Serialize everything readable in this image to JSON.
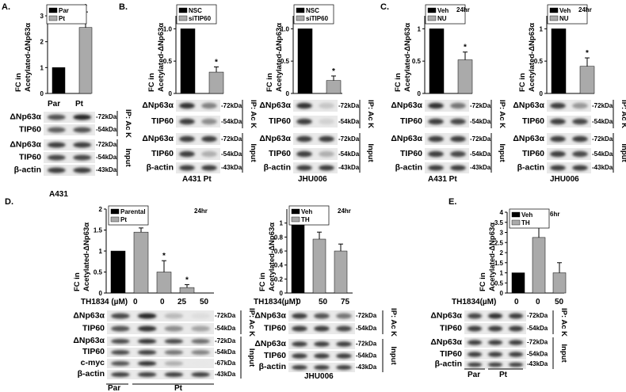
{
  "labels": {
    "A": "A.",
    "B": "B.",
    "C": "C.",
    "D": "D.",
    "E": "E.",
    "fc_in": "FC in",
    "acetylated": "Acetylated-ΔNp63α",
    "dnp63": "ΔNp63α",
    "tip60": "TIP60",
    "bactin": "β-actin",
    "cmyc": "c-myc",
    "kda72": "-72kDa",
    "kda54": "-54kDa",
    "kda43": "-43kDa",
    "kda67": "-67kDa",
    "ip": "IP: Ac K",
    "input": "Input",
    "star": "*"
  },
  "panel_a": {
    "cell_line": "A431",
    "lanes": [
      "Par",
      "Pt"
    ]
  },
  "panel_b": {
    "cell_lines": [
      "A431 Pt",
      "JHU006"
    ]
  },
  "panel_c": {
    "cell_lines": [
      "A431 Pt",
      "JHU006"
    ]
  },
  "panel_d": {
    "dose_label": "TH1834 (µM)",
    "doses_left": [
      "0",
      "0",
      "25",
      "50"
    ],
    "dose_label_right": "TH1834(µM)",
    "doses_right": [
      "0",
      "50",
      "75"
    ],
    "groups": [
      "Par",
      "Pt"
    ],
    "cell_line_right": "JHU006"
  },
  "panel_e": {
    "dose_label": "TH1834(µM)",
    "doses": [
      "0",
      "0",
      "50"
    ],
    "groups": [
      "Par",
      "Pt"
    ]
  },
  "chart_data": [
    {
      "panel": "A",
      "type": "bar",
      "categories": [
        "Par",
        "Pt"
      ],
      "series": [
        {
          "name": "Par",
          "values": [
            1.0,
            null
          ],
          "color": "#000000"
        },
        {
          "name": "Pt",
          "values": [
            null,
            2.55
          ],
          "color": "#aaaaaa"
        }
      ],
      "errors": [
        0,
        0.6
      ],
      "ylabel": "FC in Acetylated-ΔNp63α",
      "ylim": [
        0,
        3
      ],
      "yticks": [
        "0",
        "1",
        "2",
        "3"
      ],
      "legend": [
        "Par",
        "Pt"
      ],
      "significance": [
        false,
        true
      ]
    },
    {
      "panel": "B-A431 Pt",
      "type": "bar",
      "categories": [
        "NSC",
        "siTIP60"
      ],
      "values": [
        1.0,
        0.33
      ],
      "errors": [
        0,
        0.08
      ],
      "ylabel": "FC in Acetylated-ΔNp63α",
      "ylim": [
        0,
        1.2
      ],
      "yticks": [
        "0",
        "0.5",
        "1.0"
      ],
      "legend": [
        "NSC",
        "siTIP60"
      ],
      "significance": [
        false,
        true
      ]
    },
    {
      "panel": "B-JHU006",
      "type": "bar",
      "categories": [
        "NSC",
        "siTIP60"
      ],
      "values": [
        1.0,
        0.2
      ],
      "errors": [
        0,
        0.07
      ],
      "ylabel": "FC in Acetylated-ΔNp63α",
      "ylim": [
        0,
        1.2
      ],
      "yticks": [
        "0",
        "0.5",
        "1.0"
      ],
      "legend": [
        "NSC",
        "siTIP60"
      ],
      "significance": [
        false,
        true
      ]
    },
    {
      "panel": "C-A431 Pt",
      "type": "bar",
      "categories": [
        "Veh",
        "NU"
      ],
      "values": [
        1.0,
        0.52
      ],
      "errors": [
        0,
        0.12
      ],
      "ylabel": "FC in Acetylated-ΔNp63α",
      "ylim": [
        0,
        1.2
      ],
      "yticks": [
        "0",
        "0.5",
        "1"
      ],
      "legend": [
        "Veh",
        "NU"
      ],
      "annotation": "24hr",
      "significance": [
        false,
        true
      ]
    },
    {
      "panel": "C-JHU006",
      "type": "bar",
      "categories": [
        "Veh",
        "NU"
      ],
      "values": [
        1.0,
        0.42
      ],
      "errors": [
        0,
        0.13
      ],
      "ylabel": "FC in Acetylated-ΔNp63α",
      "ylim": [
        0,
        1.2
      ],
      "yticks": [
        "0",
        "0.5",
        "1"
      ],
      "legend": [
        "Veh",
        "NU"
      ],
      "annotation": "24hr",
      "significance": [
        false,
        true
      ]
    },
    {
      "panel": "D-left",
      "type": "bar",
      "categories": [
        "0",
        "0",
        "25",
        "50"
      ],
      "values": [
        1.0,
        1.45,
        0.5,
        0.13
      ],
      "errors": [
        0,
        0.1,
        0.27,
        0.07
      ],
      "colors": [
        "#000000",
        "#aaaaaa",
        "#aaaaaa",
        "#aaaaaa"
      ],
      "ylabel": "FC in Acetylated-ΔNp63α",
      "ylim": [
        0,
        2.0
      ],
      "yticks": [
        "0",
        "0.5",
        "1",
        "1.5",
        "2"
      ],
      "legend": [
        "Parental",
        "Pt"
      ],
      "annotation": "24hr",
      "significance": [
        false,
        false,
        true,
        true
      ]
    },
    {
      "panel": "D-right",
      "type": "bar",
      "categories": [
        "0",
        "50",
        "75"
      ],
      "values": [
        1.0,
        0.77,
        0.6
      ],
      "errors": [
        0,
        0.1,
        0.1
      ],
      "colors": [
        "#000000",
        "#aaaaaa",
        "#aaaaaa"
      ],
      "ylabel": "FC in Acetylated-ΔNp63α",
      "ylim": [
        0,
        1.2
      ],
      "yticks": [
        "0",
        "0.2",
        "0.4",
        "0.6",
        "0.8",
        "1"
      ],
      "legend": [
        "Veh",
        "TH"
      ],
      "annotation": "24hr"
    },
    {
      "panel": "E",
      "type": "bar",
      "categories": [
        "0",
        "0",
        "50"
      ],
      "values": [
        1.0,
        2.75,
        1.0
      ],
      "errors": [
        0,
        1.1,
        0.5
      ],
      "colors": [
        "#000000",
        "#aaaaaa",
        "#aaaaaa"
      ],
      "ylabel": "FC in Acetylated-ΔNp63α",
      "ylim": [
        0,
        4
      ],
      "yticks": [
        "0",
        "0.5",
        "1",
        "1.5",
        "2",
        "2.5",
        "3",
        "3.5",
        "4"
      ],
      "legend": [
        "Veh",
        "TH"
      ],
      "annotation": "6hr"
    }
  ]
}
